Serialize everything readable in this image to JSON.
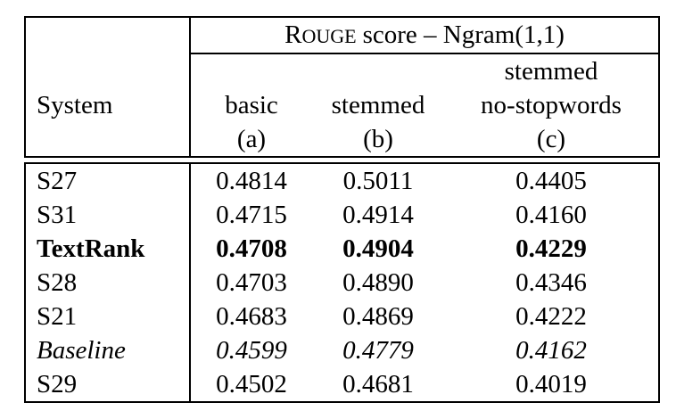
{
  "table": {
    "header": {
      "system_label": "System",
      "group": {
        "rouge_initial": "R",
        "rouge_smallcaps": "OUGE",
        "title_tail": "score – Ngram(1,1)"
      },
      "columns": [
        {
          "line2": "basic",
          "sub": "(a)"
        },
        {
          "line2": "stemmed",
          "sub": "(b)"
        },
        {
          "line1": "stemmed",
          "line2": "no-stopwords",
          "sub": "(c)"
        }
      ]
    },
    "rows": [
      {
        "system": "S27",
        "values": [
          "0.4814",
          "0.5011",
          "0.4405"
        ],
        "style": "normal"
      },
      {
        "system": "S31",
        "values": [
          "0.4715",
          "0.4914",
          "0.4160"
        ],
        "style": "normal"
      },
      {
        "system": "TextRank",
        "values": [
          "0.4708",
          "0.4904",
          "0.4229"
        ],
        "style": "bold"
      },
      {
        "system": "S28",
        "values": [
          "0.4703",
          "0.4890",
          "0.4346"
        ],
        "style": "normal"
      },
      {
        "system": "S21",
        "values": [
          "0.4683",
          "0.4869",
          "0.4222"
        ],
        "style": "normal"
      },
      {
        "system": "Baseline",
        "values": [
          "0.4599",
          "0.4779",
          "0.4162"
        ],
        "style": "italic"
      },
      {
        "system": "S29",
        "values": [
          "0.4502",
          "0.4681",
          "0.4019"
        ],
        "style": "normal"
      }
    ]
  },
  "chart_data": {
    "type": "table",
    "title": "ROUGE score – Ngram(1,1)",
    "columns": [
      "System",
      "basic (a)",
      "stemmed (b)",
      "stemmed no-stopwords (c)"
    ],
    "rows": [
      [
        "S27",
        0.4814,
        0.5011,
        0.4405
      ],
      [
        "S31",
        0.4715,
        0.4914,
        0.416
      ],
      [
        "TextRank",
        0.4708,
        0.4904,
        0.4229
      ],
      [
        "S28",
        0.4703,
        0.489,
        0.4346
      ],
      [
        "S21",
        0.4683,
        0.4869,
        0.4222
      ],
      [
        "Baseline",
        0.4599,
        0.4779,
        0.4162
      ],
      [
        "S29",
        0.4502,
        0.4681,
        0.4019
      ]
    ]
  },
  "colors": {
    "border": "#000000",
    "text": "#000000",
    "background": "#ffffff"
  }
}
